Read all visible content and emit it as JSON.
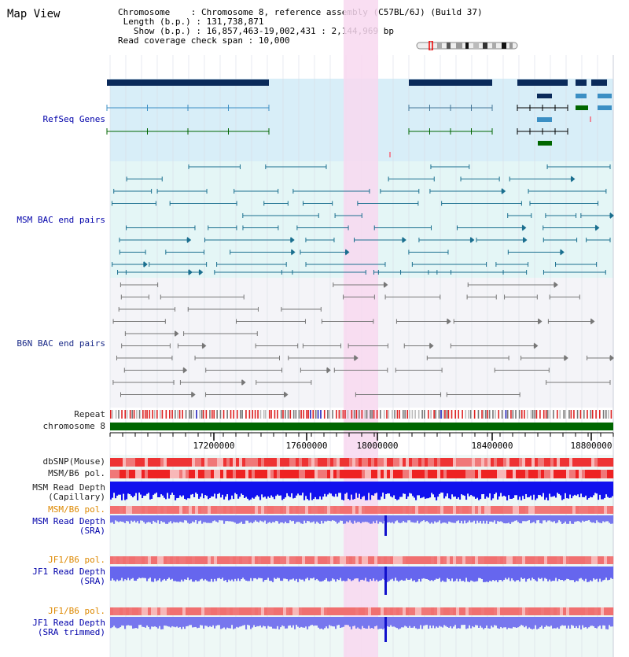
{
  "title": "Map View",
  "header": {
    "chromosome_key": "Chromosome",
    "chromosome_val": "Chromosome 8, reference assembly (C57BL/6J) (Build 37)",
    "length_key": "Length (b.p.)",
    "length_val": "131,738,871",
    "show_key": "Show (b.p.)",
    "show_val": "16,857,463-19,002,431 : 2,144,969 bp",
    "span_key": "Read coverage check span",
    "span_val": "10,000"
  },
  "tracks": {
    "refseq": "RefSeq Genes",
    "msm_bac": "MSM BAC end pairs",
    "b6n_bac": "B6N BAC end pairs",
    "repeat": "Repeat",
    "chromosome": "chromosome 8",
    "dbsnp": "dbSNP(Mouse)",
    "msm_b6_pol_1": "MSM/B6 pol.",
    "msm_read_cap_1": "MSM Read Depth",
    "msm_read_cap_2": "(Capillary)",
    "msm_b6_pol_2": "MSM/B6 pol.",
    "msm_read_sra_1": "MSM Read Depth",
    "msm_read_sra_2": "(SRA)",
    "jf1_b6_pol_1": "JF1/B6 pol.",
    "jf1_read_sra_1": "JF1 Read Depth",
    "jf1_read_sra_2": "(SRA)",
    "jf1_b6_pol_2": "JF1/B6 pol.",
    "jf1_read_trim_1": "JF1 Read Depth",
    "jf1_read_trim_2": "(SRA trimmed)"
  },
  "axis": {
    "ticks": [
      "17200000",
      "17600000",
      "18000000",
      "18400000",
      "18800000"
    ]
  },
  "colors": {
    "highlight": "#f8d8f0",
    "refseq_bg": "#d8eef8",
    "msm_bg": "#e4f6f6",
    "b6n_bg": "#f4f4f8",
    "gene_dark": "#0a2a5a",
    "gene_mid": "#3b8fc4",
    "gene_green": "#006600",
    "msm_pair": "#1a6f8f",
    "b6n_pair": "#777777",
    "chrom": "#006600",
    "snp": "#ee4444",
    "depth": "#2222ee"
  }
}
